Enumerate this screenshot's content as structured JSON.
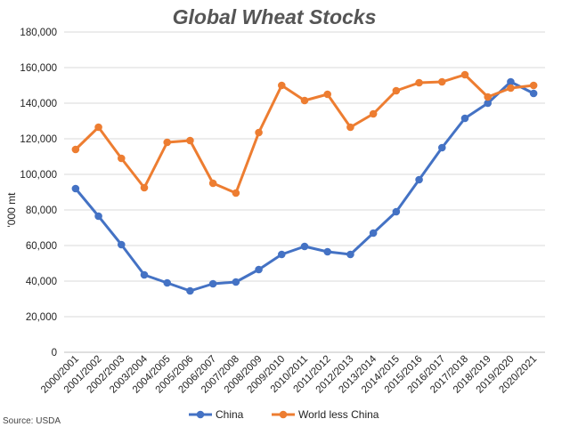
{
  "chart_data": {
    "type": "line",
    "title": "Global Wheat Stocks",
    "ylabel": "'000 mt",
    "xlabel": "",
    "ylim": [
      0,
      180000
    ],
    "yticks": [
      0,
      20000,
      40000,
      60000,
      80000,
      100000,
      120000,
      140000,
      160000,
      180000
    ],
    "ytick_labels": [
      "0",
      "20,000",
      "40,000",
      "60,000",
      "80,000",
      "100,000",
      "120,000",
      "140,000",
      "160,000",
      "180,000"
    ],
    "grid": "horizontal",
    "legend_position": "bottom",
    "categories": [
      "2000/2001",
      "2001/2002",
      "2002/2003",
      "2003/2004",
      "2004/2005",
      "2005/2006",
      "2006/2007",
      "2007/2008",
      "2008/2009",
      "2009/2010",
      "2010/2011",
      "2011/2012",
      "2012/2013",
      "2013/2014",
      "2014/2015",
      "2015/2016",
      "2016/2017",
      "2017/2018",
      "2018/2019",
      "2019/2020",
      "2020/2021"
    ],
    "series": [
      {
        "name": "China",
        "color": "#4472c4",
        "values": [
          92000,
          76500,
          60500,
          43500,
          39000,
          34500,
          38500,
          39500,
          46500,
          55000,
          59500,
          56500,
          55000,
          67000,
          79000,
          97000,
          115000,
          131500,
          140000,
          152000,
          145500
        ]
      },
      {
        "name": "World less China",
        "color": "#ed7d31",
        "values": [
          114000,
          126500,
          109000,
          92500,
          118000,
          119000,
          95000,
          89500,
          123500,
          150000,
          141500,
          145000,
          126500,
          134000,
          147000,
          151500,
          152000,
          156000,
          143500,
          148500,
          150000
        ]
      }
    ],
    "source": "Source: USDA"
  }
}
